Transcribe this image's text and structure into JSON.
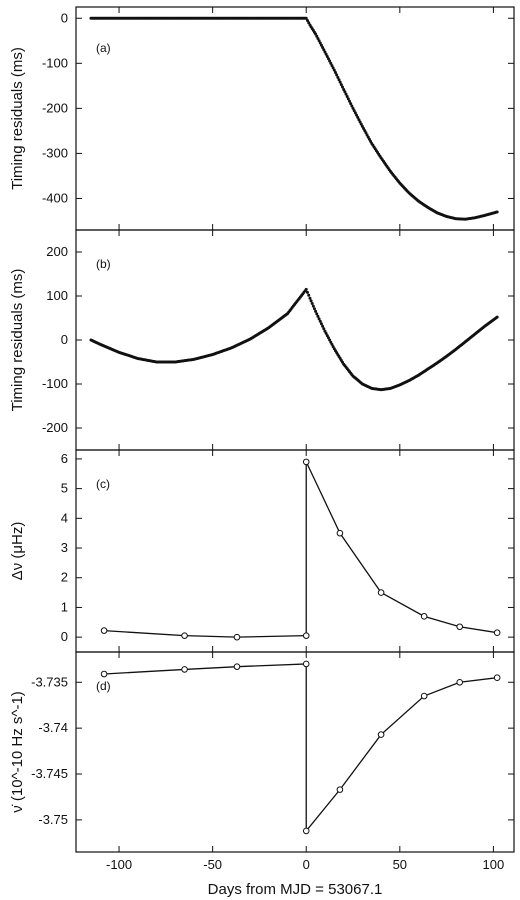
{
  "figure": {
    "xlabel": "Days from MJD = 53067.1",
    "x_ticks": [
      -100,
      -50,
      0,
      50,
      100
    ],
    "xlim": [
      -123,
      111
    ],
    "colors": {
      "ink": "#111111",
      "marker_fill": "#ffffff",
      "background": "#ffffff"
    }
  },
  "chart_data": [
    {
      "type": "scatter",
      "panel": "(a)",
      "ylabel": "Timing residuals  (ms)",
      "ylim": [
        -470,
        25
      ],
      "y_ticks": [
        0,
        -100,
        -200,
        -300,
        -400
      ],
      "x": [
        -115,
        -105,
        -95,
        -85,
        -75,
        -65,
        -55,
        -45,
        -35,
        -25,
        -15,
        -5,
        0,
        2,
        5,
        10,
        15,
        20,
        25,
        30,
        35,
        40,
        45,
        50,
        55,
        60,
        65,
        70,
        75,
        80,
        85,
        90,
        95,
        102
      ],
      "y": [
        0,
        0,
        0,
        0,
        0,
        0,
        0,
        0,
        0,
        0,
        0,
        0,
        0,
        -15,
        -35,
        -75,
        -115,
        -158,
        -200,
        -240,
        -278,
        -310,
        -340,
        -366,
        -388,
        -406,
        -420,
        -432,
        -440,
        -445,
        -446,
        -443,
        -438,
        -430
      ]
    },
    {
      "type": "scatter",
      "panel": "(b)",
      "ylabel": "Timing residuals  (ms)",
      "ylim": [
        -250,
        250
      ],
      "y_ticks": [
        200,
        100,
        0,
        -100,
        -200
      ],
      "x": [
        -115,
        -110,
        -100,
        -90,
        -80,
        -70,
        -60,
        -50,
        -40,
        -30,
        -20,
        -10,
        0,
        2,
        5,
        10,
        15,
        20,
        25,
        30,
        35,
        40,
        45,
        50,
        55,
        60,
        65,
        70,
        75,
        80,
        85,
        90,
        95,
        102
      ],
      "y": [
        0,
        -10,
        -28,
        -42,
        -50,
        -50,
        -44,
        -33,
        -18,
        2,
        28,
        60,
        115,
        95,
        65,
        20,
        -20,
        -55,
        -82,
        -100,
        -110,
        -113,
        -110,
        -102,
        -92,
        -80,
        -66,
        -52,
        -37,
        -21,
        -4,
        13,
        30,
        52
      ]
    },
    {
      "type": "line",
      "panel": "(c)",
      "ylabel": "Δν  (μHz)",
      "ylim": [
        -0.5,
        6.3
      ],
      "y_ticks": [
        0,
        1,
        2,
        3,
        4,
        5,
        6
      ],
      "x": [
        -108,
        -65,
        -37,
        0,
        0,
        18,
        40,
        63,
        82,
        102
      ],
      "y": [
        0.22,
        0.05,
        0.0,
        0.05,
        5.9,
        3.5,
        1.5,
        0.7,
        0.35,
        0.15
      ]
    },
    {
      "type": "line",
      "panel": "(d)",
      "ylabel": "ν̇ (10^-10 Hz s^-1)",
      "ylim": [
        -3.7535,
        -3.7317
      ],
      "y_ticks": [
        -3.735,
        -3.74,
        -3.745,
        -3.75
      ],
      "x": [
        -108,
        -65,
        -37,
        0,
        0,
        18,
        40,
        63,
        82,
        102
      ],
      "y": [
        -3.7341,
        -3.7336,
        -3.7333,
        -3.733,
        -3.7512,
        -3.7467,
        -3.7407,
        -3.7365,
        -3.735,
        -3.7345
      ]
    }
  ]
}
